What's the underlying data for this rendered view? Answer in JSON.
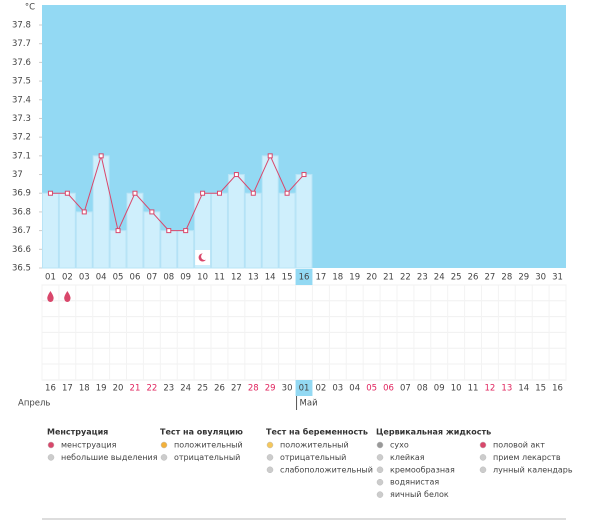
{
  "chart_data": {
    "type": "line",
    "y_unit": "°C",
    "x": [
      "01",
      "02",
      "03",
      "04",
      "05",
      "06",
      "07",
      "08",
      "09",
      "10",
      "11",
      "12",
      "13",
      "14",
      "15",
      "16",
      "17",
      "18",
      "19",
      "20",
      "21",
      "22",
      "23",
      "24",
      "25",
      "26",
      "27",
      "28",
      "29",
      "30",
      "31"
    ],
    "values": [
      36.9,
      36.9,
      36.8,
      37.1,
      36.7,
      36.9,
      36.8,
      36.7,
      36.7,
      36.9,
      36.9,
      37.0,
      36.9,
      37.1,
      36.9,
      37.0,
      null,
      null,
      null,
      null,
      null,
      null,
      null,
      null,
      null,
      null,
      null,
      null,
      null,
      null,
      null
    ],
    "ylim": [
      36.5,
      37.8
    ],
    "yticks": [
      36.5,
      36.6,
      36.7,
      36.8,
      36.9,
      {
        "value": 37.0,
        "label": "37"
      },
      37.1,
      37.2,
      37.3,
      37.4,
      37.5,
      37.6,
      37.7,
      37.8
    ],
    "today": "16",
    "line_color": "#d9476b",
    "background_color": "#93d9f3",
    "bar_color": "#cfeffc",
    "menstruation_days": [
      "01",
      "02"
    ],
    "lunar_calendar_days": [
      "10"
    ],
    "calendar_dates": [
      {
        "label": "16"
      },
      {
        "label": "17"
      },
      {
        "label": "18"
      },
      {
        "label": "19"
      },
      {
        "label": "20"
      },
      {
        "label": "21",
        "weekend": true
      },
      {
        "label": "22",
        "weekend": true
      },
      {
        "label": "23"
      },
      {
        "label": "24"
      },
      {
        "label": "25"
      },
      {
        "label": "26"
      },
      {
        "label": "27"
      },
      {
        "label": "28",
        "weekend": true
      },
      {
        "label": "29",
        "weekend": true
      },
      {
        "label": "30"
      },
      {
        "label": "01"
      },
      {
        "label": "02"
      },
      {
        "label": "03"
      },
      {
        "label": "04"
      },
      {
        "label": "05",
        "weekend": true
      },
      {
        "label": "06",
        "weekend": true
      },
      {
        "label": "07"
      },
      {
        "label": "08"
      },
      {
        "label": "09"
      },
      {
        "label": "10"
      },
      {
        "label": "11"
      },
      {
        "label": "12",
        "weekend": true
      },
      {
        "label": "13",
        "weekend": true
      },
      {
        "label": "14"
      },
      {
        "label": "15"
      },
      {
        "label": "16"
      }
    ],
    "weekend_color": "#e0245e",
    "months": [
      {
        "label": "Апрель",
        "start": 0
      },
      {
        "label": "Май",
        "start": 15
      }
    ],
    "legend": [
      {
        "title": "Менструация",
        "items": [
          "менструация",
          "небольшие выделения"
        ]
      },
      {
        "title": "Тест на овуляцию",
        "items": [
          "положительный",
          "отрицательный"
        ]
      },
      {
        "title": "Тест на беременность",
        "items": [
          "положительный",
          "отрицательный",
          "слабоположительный"
        ]
      },
      {
        "title": "Цервикальная жидкость",
        "items": [
          "сухо",
          "клейкая",
          "кремообразная",
          "водянистая",
          "яичный белок"
        ]
      },
      {
        "items": [
          "половой акт",
          "прием лекарств",
          "лунный календарь"
        ]
      }
    ]
  }
}
